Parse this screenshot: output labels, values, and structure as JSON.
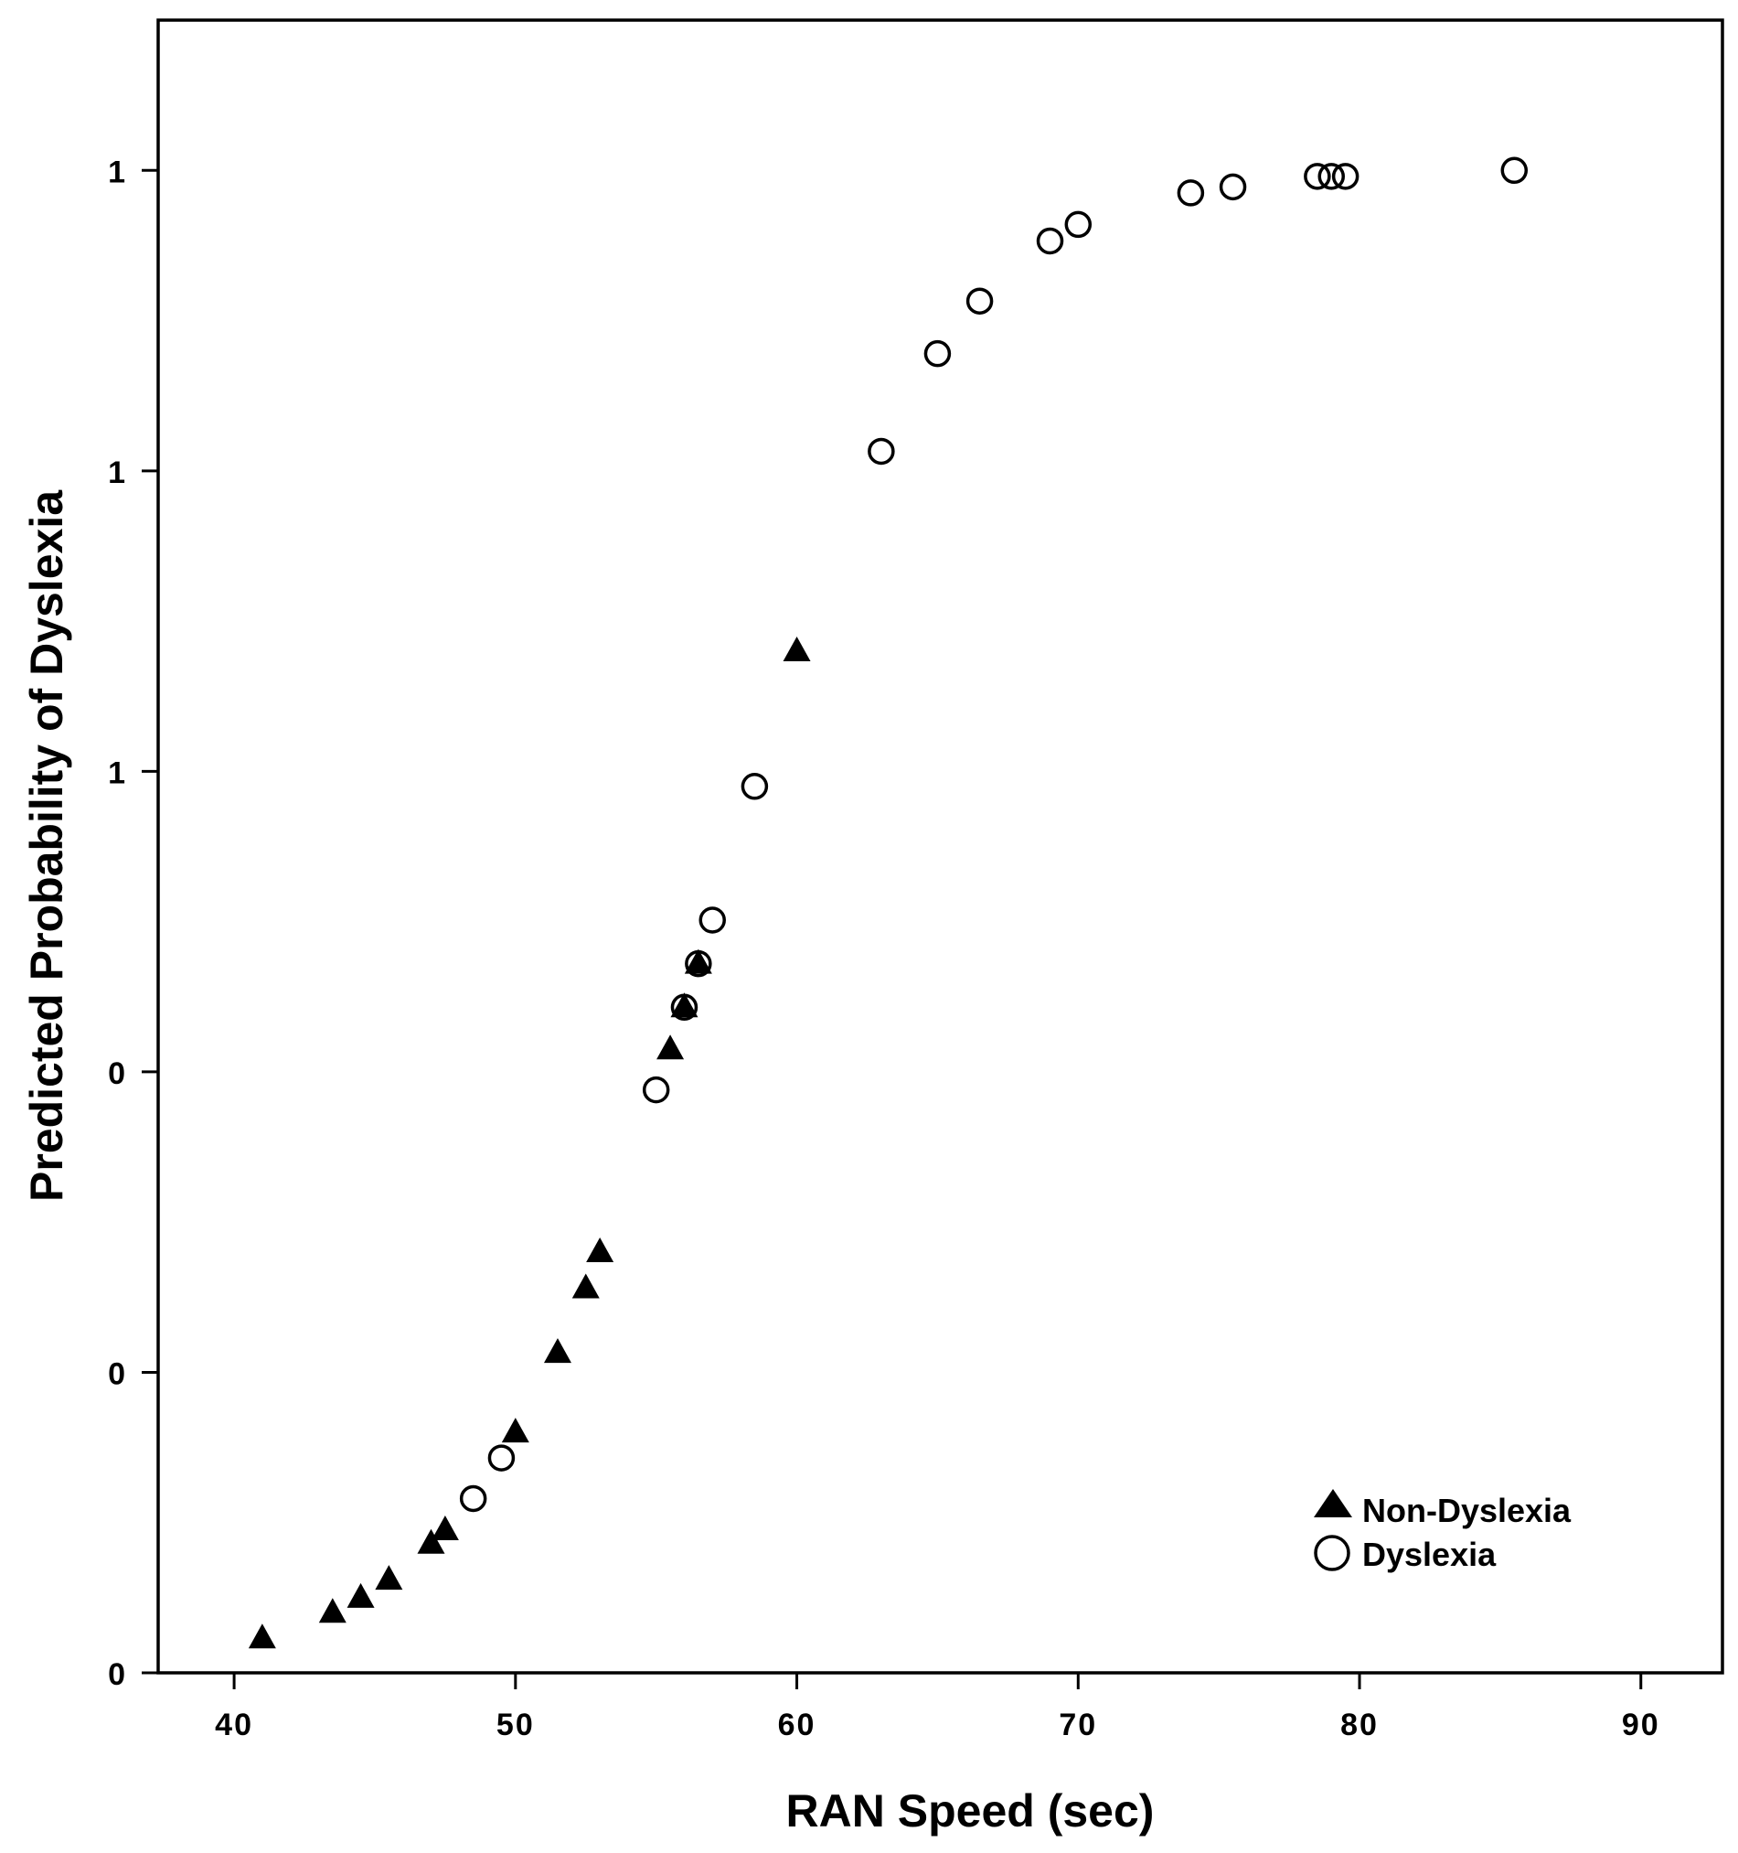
{
  "chart_data": {
    "type": "scatter",
    "title": "",
    "xlabel": "RAN Speed (sec)",
    "ylabel": "Predicted Probability of Dyslexia",
    "xlim": [
      37.3,
      92.9
    ],
    "ylim": [
      0.0,
      1.1
    ],
    "x_ticks": [
      40,
      50,
      60,
      70,
      80,
      90
    ],
    "x_tick_labels": [
      "40",
      "50",
      "60",
      "70",
      "80",
      "90"
    ],
    "y_ticks": [
      0.0,
      0.2,
      0.4,
      0.6,
      0.8,
      1.0
    ],
    "y_tick_labels": [
      "0",
      "0",
      "0",
      "1",
      "1",
      "1"
    ],
    "grid": false,
    "legend_position": "bottom-right",
    "series": [
      {
        "name": "Non-Dyslexia",
        "marker": "filled-triangle",
        "color": "#000000",
        "points": [
          {
            "x": 41.0,
            "y": 0.023
          },
          {
            "x": 43.5,
            "y": 0.04
          },
          {
            "x": 44.5,
            "y": 0.05
          },
          {
            "x": 45.5,
            "y": 0.062
          },
          {
            "x": 47.0,
            "y": 0.086
          },
          {
            "x": 47.5,
            "y": 0.095
          },
          {
            "x": 50.0,
            "y": 0.16
          },
          {
            "x": 51.5,
            "y": 0.213
          },
          {
            "x": 52.5,
            "y": 0.256
          },
          {
            "x": 53.0,
            "y": 0.28
          },
          {
            "x": 55.5,
            "y": 0.415
          },
          {
            "x": 56.0,
            "y": 0.443
          },
          {
            "x": 56.5,
            "y": 0.472
          },
          {
            "x": 60.0,
            "y": 0.68
          }
        ]
      },
      {
        "name": "Dyslexia",
        "marker": "open-circle",
        "color": "#000000",
        "points": [
          {
            "x": 48.5,
            "y": 0.116
          },
          {
            "x": 49.5,
            "y": 0.143
          },
          {
            "x": 55.0,
            "y": 0.388
          },
          {
            "x": 56.0,
            "y": 0.443
          },
          {
            "x": 56.5,
            "y": 0.472
          },
          {
            "x": 57.0,
            "y": 0.501
          },
          {
            "x": 58.5,
            "y": 0.59
          },
          {
            "x": 63.0,
            "y": 0.813
          },
          {
            "x": 65.0,
            "y": 0.878
          },
          {
            "x": 66.5,
            "y": 0.913
          },
          {
            "x": 69.0,
            "y": 0.953
          },
          {
            "x": 70.0,
            "y": 0.964
          },
          {
            "x": 74.0,
            "y": 0.985
          },
          {
            "x": 75.5,
            "y": 0.989
          },
          {
            "x": 78.5,
            "y": 0.996
          },
          {
            "x": 79.0,
            "y": 0.996
          },
          {
            "x": 79.5,
            "y": 0.996
          },
          {
            "x": 85.5,
            "y": 1.0
          }
        ]
      }
    ]
  }
}
